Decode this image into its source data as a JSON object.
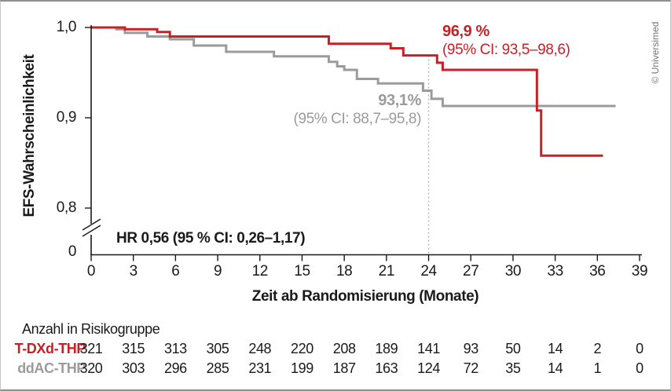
{
  "copyright": "© Universimed",
  "chart_data": {
    "type": "line",
    "subtype": "kaplan-meier-step-curves",
    "title": "",
    "xlabel": "Zeit ab Randomisierung (Monate)",
    "ylabel": "EFS-Wahrscheinlichkeit",
    "xlim": [
      0,
      39
    ],
    "ylim_shown": [
      0.8,
      1.0
    ],
    "axis_break_above_zero": true,
    "grid": false,
    "x_ticks": [
      0,
      3,
      6,
      9,
      12,
      15,
      18,
      21,
      24,
      27,
      30,
      33,
      36,
      39
    ],
    "y_ticks": [
      {
        "label": "1,0",
        "value": 1.0
      },
      {
        "label": "0,9",
        "value": 0.9
      },
      {
        "label": "0,8",
        "value": 0.8
      },
      {
        "label": "0",
        "value": 0.0
      }
    ],
    "landmark_month": 24,
    "hr_text": "HR 0,56 (95 % CI: 0,26–1,17)",
    "series": [
      {
        "name": "T-DXd-THP",
        "color": "#c62127",
        "end_x": 36.4,
        "points": [
          [
            0,
            1.0
          ],
          [
            2.4,
            0.998
          ],
          [
            4.7,
            0.995
          ],
          [
            5.6,
            0.99
          ],
          [
            16.9,
            0.982
          ],
          [
            21.3,
            0.977
          ],
          [
            22.2,
            0.969
          ],
          [
            24.6,
            0.961
          ],
          [
            25.0,
            0.953
          ],
          [
            31.7,
            0.908
          ],
          [
            32.0,
            0.858
          ]
        ],
        "annotation": {
          "value": "96,9 %",
          "ci": "(95% CI: 93,5–98,6)"
        }
      },
      {
        "name": "ddAC-THP",
        "color": "#9b9b9b",
        "end_x": 37.3,
        "points": [
          [
            0,
            1.0
          ],
          [
            1.8,
            0.998
          ],
          [
            2.4,
            0.994
          ],
          [
            4.0,
            0.99
          ],
          [
            5.6,
            0.987
          ],
          [
            7.3,
            0.98
          ],
          [
            9.6,
            0.973
          ],
          [
            13.0,
            0.968
          ],
          [
            16.9,
            0.962
          ],
          [
            17.5,
            0.957
          ],
          [
            18.0,
            0.953
          ],
          [
            18.9,
            0.943
          ],
          [
            20.4,
            0.938
          ],
          [
            23.6,
            0.93
          ],
          [
            24.2,
            0.921
          ],
          [
            25.0,
            0.913
          ]
        ],
        "annotation": {
          "value": "93,1%",
          "ci": "(95% CI: 88,7–95,8)"
        }
      }
    ]
  },
  "risk_table": {
    "title": "Anzahl in Risikogruppe",
    "months": [
      0,
      3,
      6,
      9,
      12,
      15,
      18,
      21,
      24,
      27,
      30,
      33,
      36,
      39
    ],
    "rows": [
      {
        "label": "T-DXd-THP",
        "color": "#c62127",
        "counts": [
          321,
          315,
          313,
          305,
          248,
          220,
          208,
          189,
          141,
          93,
          50,
          14,
          2,
          0
        ]
      },
      {
        "label": "ddAC-THP",
        "color": "#9b9b9b",
        "counts": [
          320,
          303,
          296,
          285,
          231,
          199,
          187,
          163,
          124,
          72,
          35,
          14,
          1,
          0
        ]
      }
    ]
  }
}
